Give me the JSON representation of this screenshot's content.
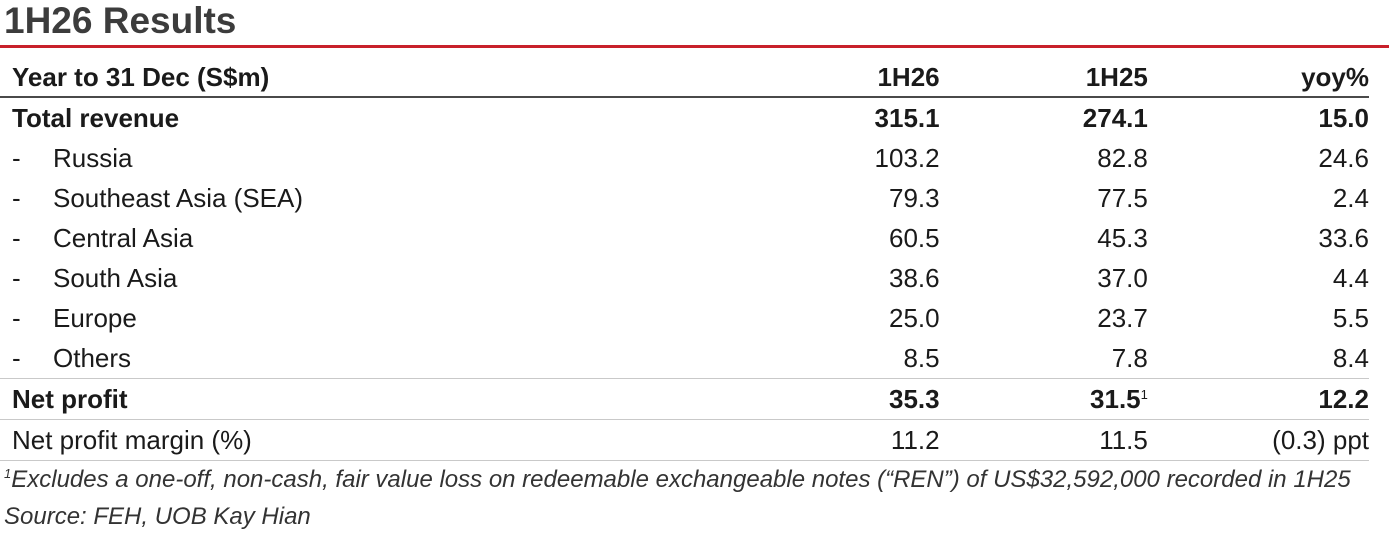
{
  "title": "1H26 Results",
  "table": {
    "headers": {
      "label": "Year to 31 Dec (S$m)",
      "col1": "1H26",
      "col2": "1H25",
      "col3": "yoy%"
    },
    "total_revenue": {
      "label": "Total revenue",
      "col1": "315.1",
      "col2": "274.1",
      "col3": "15.0"
    },
    "segments": [
      {
        "prefix": "-",
        "label": "Russia",
        "col1": "103.2",
        "col2": "82.8",
        "col3": "24.6"
      },
      {
        "prefix": "-",
        "label": "Southeast Asia (SEA)",
        "col1": "79.3",
        "col2": "77.5",
        "col3": "2.4"
      },
      {
        "prefix": "-",
        "label": "Central Asia",
        "col1": "60.5",
        "col2": "45.3",
        "col3": "33.6"
      },
      {
        "prefix": "-",
        "label": "South Asia",
        "col1": "38.6",
        "col2": "37.0",
        "col3": "4.4"
      },
      {
        "prefix": "-",
        "label": "Europe",
        "col1": "25.0",
        "col2": "23.7",
        "col3": "5.5"
      },
      {
        "prefix": "-",
        "label": "Others",
        "col1": "8.5",
        "col2": "7.8",
        "col3": "8.4"
      }
    ],
    "net_profit": {
      "label": "Net profit",
      "col1": "35.3",
      "col2": "31.5",
      "col2_footnote_mark": "1",
      "col3": "12.2"
    },
    "net_profit_margin": {
      "label": "Net profit margin (%)",
      "col1": "11.2",
      "col2": "11.5",
      "col3": "(0.3) ppt"
    }
  },
  "footnotes": {
    "note1_mark": "1",
    "note1_text": "Excludes a one-off, non-cash, fair value loss on redeemable exchangeable notes (“REN”) of US$32,592,000 recorded in 1H25",
    "source": "Source: FEH, UOB Kay Hian"
  }
}
